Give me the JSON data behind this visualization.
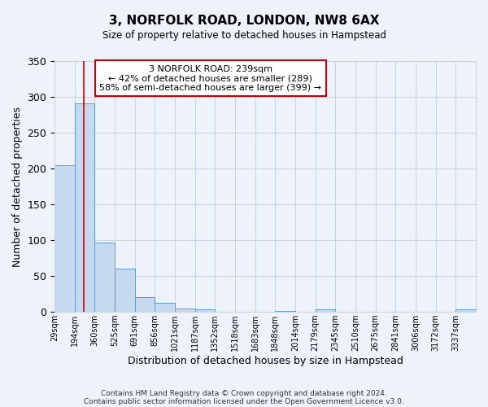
{
  "title": "3, NORFOLK ROAD, LONDON, NW8 6AX",
  "subtitle": "Size of property relative to detached houses in Hampstead",
  "xlabel": "Distribution of detached houses by size in Hampstead",
  "ylabel": "Number of detached properties",
  "bin_labels": [
    "29sqm",
    "194sqm",
    "360sqm",
    "525sqm",
    "691sqm",
    "856sqm",
    "1021sqm",
    "1187sqm",
    "1352sqm",
    "1518sqm",
    "1683sqm",
    "1848sqm",
    "2014sqm",
    "2179sqm",
    "2345sqm",
    "2510sqm",
    "2675sqm",
    "2841sqm",
    "3006sqm",
    "3172sqm",
    "3337sqm"
  ],
  "bar_heights": [
    205,
    291,
    97,
    60,
    21,
    13,
    5,
    4,
    0,
    0,
    0,
    1,
    0,
    3,
    0,
    0,
    0,
    0,
    0,
    0,
    3
  ],
  "bar_color": "#c5d9ef",
  "bar_edge_color": "#6699cc",
  "background_color": "#eef2fa",
  "grid_color": "#c8d4e8",
  "ylim": [
    0,
    350
  ],
  "yticks": [
    0,
    50,
    100,
    150,
    200,
    250,
    300,
    350
  ],
  "annotation_box_text": "3 NORFOLK ROAD: 239sqm\n← 42% of detached houses are smaller (289)\n58% of semi-detached houses are larger (399) →",
  "annotation_box_color": "#ffffff",
  "annotation_box_edge_color": "#cc0000",
  "red_line_x": 1.44,
  "footer_line1": "Contains HM Land Registry data © Crown copyright and database right 2024.",
  "footer_line2": "Contains public sector information licensed under the Open Government Licence v3.0."
}
